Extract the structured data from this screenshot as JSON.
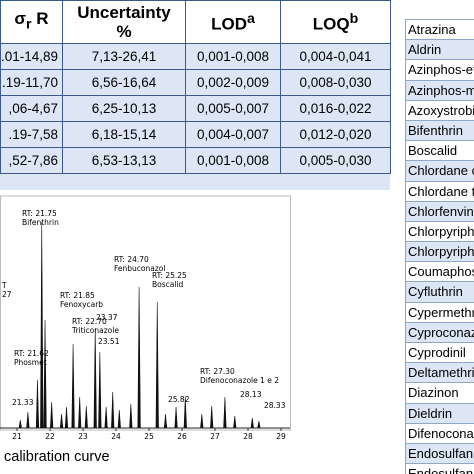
{
  "table": {
    "header": [
      {
        "text": "σ",
        "sub": "r",
        "after": "R"
      },
      {
        "lines": [
          "Uncertainty",
          "%"
        ]
      },
      {
        "text": "LOD",
        "sup": "a"
      },
      {
        "text": "LOQ",
        "sup": "b"
      }
    ],
    "rows": [
      [
        ".01-14,89",
        "7,13-26,41",
        "0,001-0,008",
        "0,004-0,041"
      ],
      [
        ".19-11,70",
        "6,56-16,64",
        "0,002-0,009",
        "0,008-0,030"
      ],
      [
        ",06-4,67",
        "6,25-10,13",
        "0,005-0,007",
        "0,016-0,022"
      ],
      [
        ".19-7,58",
        "6,18-15,14",
        "0,004-0,007",
        "0,012-0,020"
      ],
      [
        ",52-7,86",
        "6,53-13,13",
        "0,001-0,008",
        "0,005-0,030"
      ]
    ]
  },
  "chromatogram": {
    "annotations": [
      [
        "T",
        "27"
      ],
      [
        "RT: 21.75",
        "Bifenthrin"
      ],
      [
        "RT: 24.70",
        "Fenbuconazol"
      ],
      [
        "RT: 25.25",
        "Boscalid"
      ],
      [
        "RT: 21.85",
        "Fenoxycarb"
      ],
      [
        "RT: 22.70",
        "Triticonazole"
      ],
      [
        "23.37"
      ],
      [
        "23.51"
      ],
      [
        "RT: 21.62",
        "Phosmet"
      ],
      [
        "21.33"
      ],
      [
        "RT: 27.30",
        "Difenoconazole 1 e 2"
      ],
      [
        "25.82"
      ],
      [
        "28.13"
      ],
      [
        "28.33"
      ]
    ],
    "axis_ticks": [
      "21",
      "22",
      "23",
      "24",
      "25",
      "26",
      "27",
      "28",
      "29"
    ],
    "caption": "calibration curve"
  },
  "list": {
    "items": [
      "Atrazina",
      "Aldrin",
      "Azinphos-ethyl",
      "Azinphos-methyl",
      "Azoxystrobin",
      "Bifenthrin",
      "Boscalid",
      "Chlordane cis",
      "Chlordane trans",
      "Chlorfenvinphos",
      "Chlorpyriphos",
      "Chlorpyriphos-methyl",
      "Coumaphos",
      "Cyfluthrin",
      "Cypermethrin",
      "Cyproconazole",
      "Cyprodinil",
      "Deltamethrin",
      "Diazinon",
      "Dieldrin",
      "Difenoconazole",
      "Endosulfan I",
      "Endosulfan II"
    ]
  }
}
